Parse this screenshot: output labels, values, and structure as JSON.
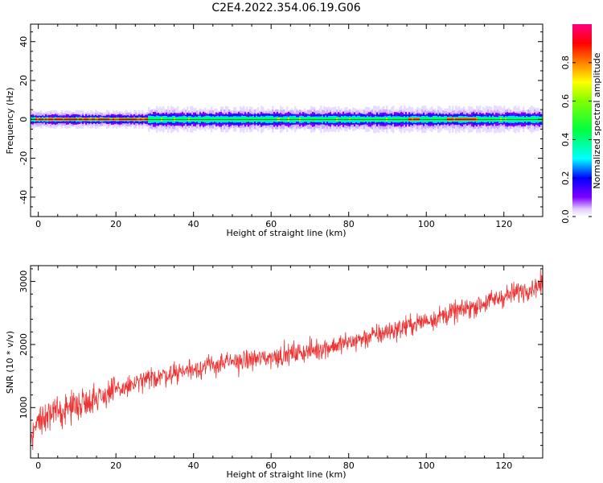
{
  "title": "C2E4.2022.354.06.19.G06",
  "colors": {
    "snr_line": "#ee3333",
    "axis": "#000000",
    "background": "#ffffff"
  },
  "chart_data": [
    {
      "type": "heatmap",
      "xlabel": "Height of straight line (km)",
      "ylabel": "Frequency (Hz)",
      "xlim": [
        -2,
        130
      ],
      "ylim": [
        -50,
        49
      ],
      "xticks": [
        "0",
        "20",
        "40",
        "60",
        "80",
        "100",
        "120"
      ],
      "yticks": [
        "-40",
        "-20",
        "0",
        "20",
        "40"
      ],
      "colormap": "gist_rainbow_r",
      "colorbar": {
        "label": "Normalized spectral amplitude",
        "range": [
          0,
          1
        ],
        "ticks": [
          "0.0",
          "0.2",
          "0.4",
          "0.6",
          "0.8"
        ]
      },
      "description_values": {
        "peak_frequency_hz": 0,
        "bandwidth_hz": [
          -4,
          4
        ],
        "high_amplitude_segments_km": [
          [
            -1,
            28
          ],
          [
            95,
            98
          ],
          [
            105,
            113
          ]
        ]
      }
    },
    {
      "type": "line",
      "xlabel": "Height of straight line (km)",
      "ylabel": "SNR (10 * v/v)",
      "xlim": [
        -2,
        130
      ],
      "ylim": [
        200,
        3250
      ],
      "xticks": [
        "0",
        "20",
        "40",
        "60",
        "80",
        "100",
        "120"
      ],
      "yticks": [
        "1000",
        "2000",
        "3000"
      ],
      "trend": {
        "x": [
          -2,
          0,
          10,
          20,
          30,
          40,
          50,
          60,
          70,
          80,
          90,
          100,
          110,
          120,
          130
        ],
        "y": [
          550,
          800,
          1050,
          1270,
          1480,
          1620,
          1720,
          1800,
          1900,
          2030,
          2200,
          2380,
          2560,
          2760,
          2960
        ]
      },
      "noise_amplitude": 120
    }
  ]
}
